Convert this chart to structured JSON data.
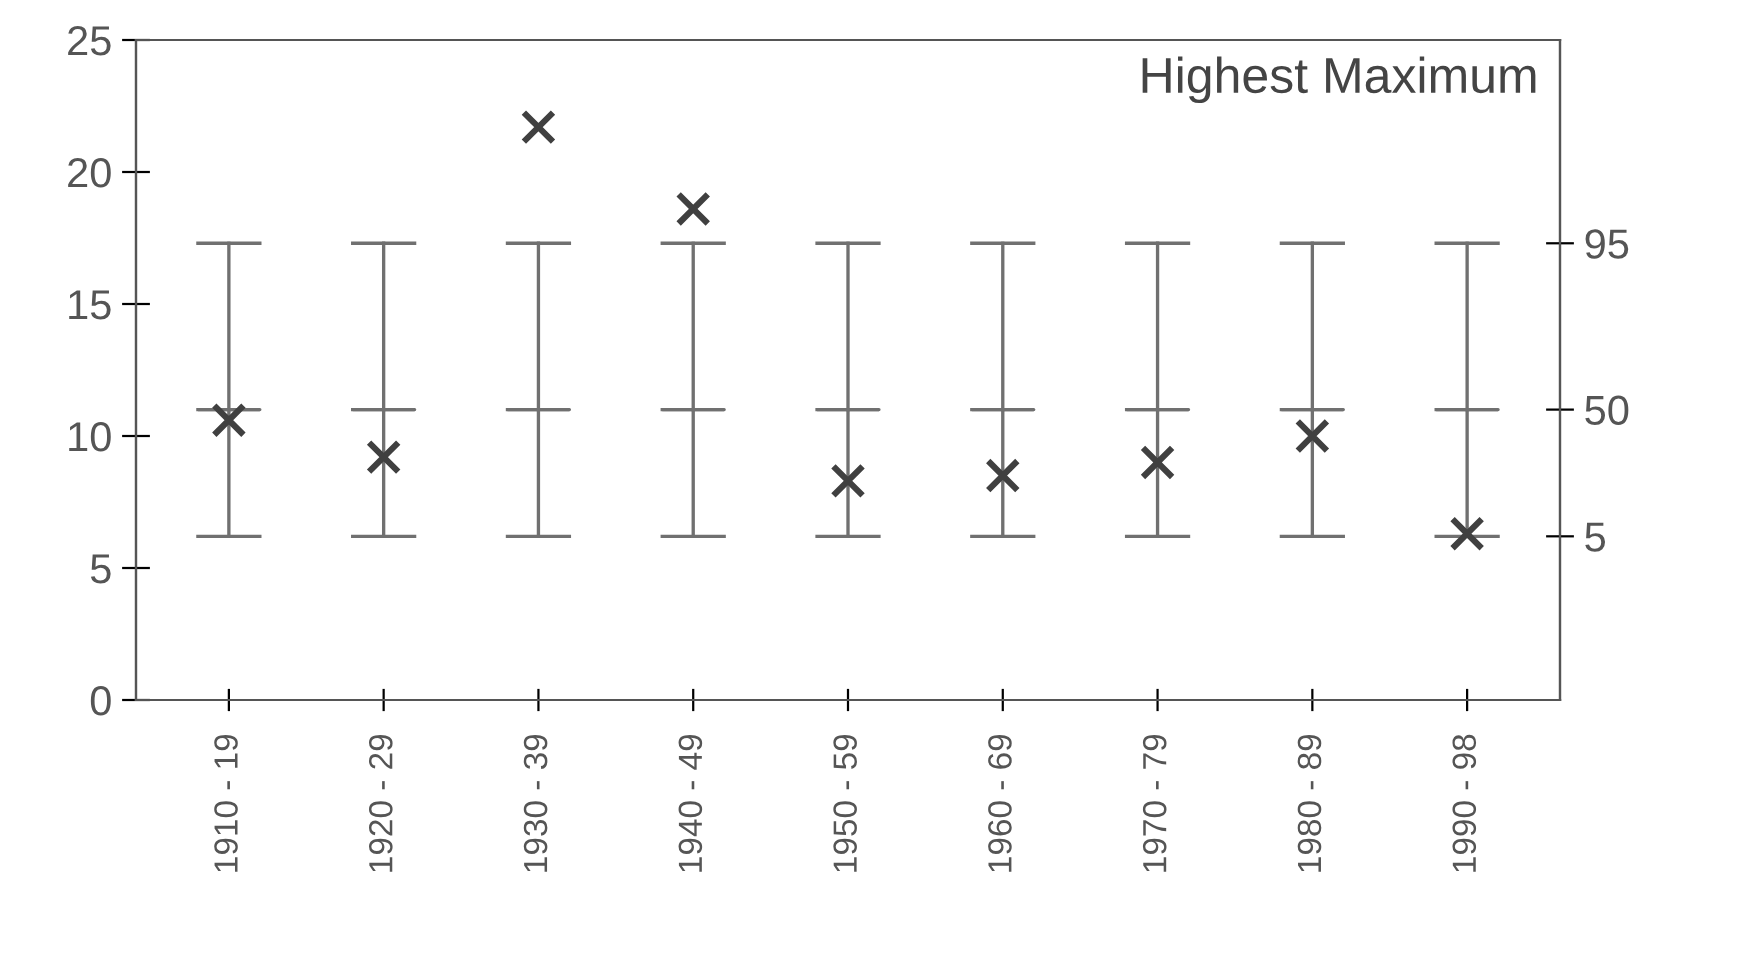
{
  "chart_data": {
    "type": "box",
    "title": "Highest Maximum",
    "categories": [
      "1910 - 19",
      "1920 - 29",
      "1930 - 39",
      "1940 - 49",
      "1950 - 59",
      "1960 - 69",
      "1970 - 79",
      "1980 - 89",
      "1990 - 98"
    ],
    "ylim": [
      0,
      25
    ],
    "yticks": [
      0,
      5,
      10,
      15,
      20,
      25
    ],
    "annotations": [
      "95",
      "50",
      "5"
    ],
    "grid": false,
    "legend": false,
    "series": [
      {
        "color": "#707070",
        "boxes": [
          {
            "low": 6.2,
            "q1": 11,
            "median": 11,
            "q3": 11,
            "high": 17.3
          },
          {
            "low": 6.2,
            "q1": 11,
            "median": 11,
            "q3": 11,
            "high": 17.3
          },
          {
            "low": 6.2,
            "q1": 11,
            "median": 11,
            "q3": 11,
            "high": 17.3
          },
          {
            "low": 6.2,
            "q1": 11,
            "median": 11,
            "q3": 11,
            "high": 17.3
          },
          {
            "low": 6.2,
            "q1": 11,
            "median": 11,
            "q3": 11,
            "high": 17.3
          },
          {
            "low": 6.2,
            "q1": 11,
            "median": 11,
            "q3": 11,
            "high": 17.3
          },
          {
            "low": 6.2,
            "q1": 11,
            "median": 11,
            "q3": 11,
            "high": 17.3
          },
          {
            "low": 6.2,
            "q1": 11,
            "median": 11,
            "q3": 11,
            "high": 17.3
          },
          {
            "low": 6.2,
            "q1": 11,
            "median": 11,
            "q3": 11,
            "high": 17.3
          }
        ]
      },
      {
        "type": "scatter",
        "color": "#404040",
        "marker": "cross",
        "x": [
          "1910 - 19",
          "1920 - 29",
          "1930 - 39",
          "1940 - 49",
          "1950 - 59",
          "1960 - 69",
          "1970 - 79",
          "1980 - 89",
          "1990 - 98"
        ],
        "values": [
          10.6,
          9.2,
          21.7,
          18.6,
          8.3,
          8.5,
          9.0,
          10.0,
          6.3
        ]
      }
    ]
  }
}
